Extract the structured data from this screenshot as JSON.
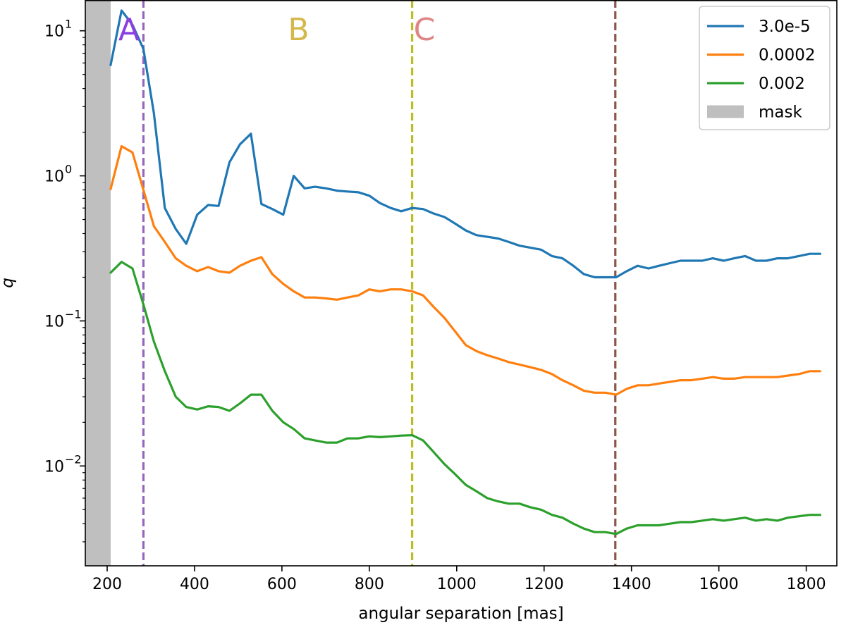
{
  "chart_data": {
    "type": "line",
    "xlabel": "angular separation [mas]",
    "ylabel": "q",
    "xlim": [
      150,
      1870
    ],
    "ylim": [
      0.00205,
      16.3
    ],
    "yscale": "log",
    "grid": false,
    "legend_position": "top-right",
    "xticks": [
      200,
      400,
      600,
      800,
      1000,
      1200,
      1400,
      1600,
      1800
    ],
    "xtick_labels": [
      "200",
      "400",
      "600",
      "800",
      "1000",
      "1200",
      "1400",
      "1600",
      "1800"
    ],
    "yticks": [
      {
        "value": 10,
        "base": "10",
        "exp": "1"
      },
      {
        "value": 1,
        "base": "10",
        "exp": "0"
      },
      {
        "value": 0.1,
        "base": "10",
        "exp": "−1"
      },
      {
        "value": 0.01,
        "base": "10",
        "exp": "−2"
      }
    ],
    "mask": {
      "name": "mask",
      "x_range": [
        150,
        208
      ],
      "color": "#bfbfbf"
    },
    "vlines": [
      {
        "x": 283,
        "label": "A",
        "line_color": "#9467bd",
        "label_color": "#8a3fe0",
        "label_x": 250
      },
      {
        "x": 898,
        "label": "B",
        "line_color": "#bcbd22",
        "label_color": "#d4b84c",
        "label_x": 638
      },
      {
        "x": 1363,
        "label": "C",
        "line_color": "#8c564b",
        "label_color": "#e08585",
        "label_x": 926
      }
    ],
    "series": [
      {
        "name": "3.0e-5",
        "color": "#1f77b4",
        "x": [
          208,
          233,
          258,
          283,
          307,
          332,
          357,
          381,
          406,
          431,
          455,
          480,
          504,
          529,
          553,
          578,
          603,
          627,
          652,
          676,
          701,
          726,
          750,
          775,
          800,
          824,
          849,
          873,
          898,
          923,
          947,
          972,
          996,
          1021,
          1045,
          1070,
          1095,
          1119,
          1144,
          1168,
          1193,
          1218,
          1242,
          1267,
          1291,
          1316,
          1340,
          1365,
          1389,
          1414,
          1439,
          1463,
          1488,
          1512,
          1537,
          1562,
          1586,
          1611,
          1635,
          1660,
          1685,
          1709,
          1734,
          1758,
          1783,
          1808,
          1832
        ],
        "y": [
          5.8,
          13.8,
          11.0,
          7.5,
          2.7,
          0.6,
          0.43,
          0.34,
          0.54,
          0.63,
          0.62,
          1.24,
          1.65,
          1.95,
          0.64,
          0.59,
          0.54,
          1.0,
          0.82,
          0.84,
          0.82,
          0.79,
          0.78,
          0.77,
          0.73,
          0.65,
          0.6,
          0.57,
          0.6,
          0.59,
          0.55,
          0.52,
          0.47,
          0.42,
          0.39,
          0.38,
          0.37,
          0.35,
          0.33,
          0.32,
          0.31,
          0.28,
          0.27,
          0.24,
          0.21,
          0.2,
          0.2,
          0.2,
          0.22,
          0.24,
          0.23,
          0.24,
          0.25,
          0.26,
          0.26,
          0.26,
          0.27,
          0.26,
          0.27,
          0.28,
          0.26,
          0.26,
          0.27,
          0.27,
          0.28,
          0.29,
          0.29
        ]
      },
      {
        "name": "0.0002",
        "color": "#ff7f0e",
        "x": [
          208,
          233,
          258,
          283,
          307,
          332,
          357,
          381,
          406,
          431,
          455,
          480,
          504,
          529,
          553,
          578,
          603,
          627,
          652,
          676,
          701,
          726,
          750,
          775,
          800,
          824,
          849,
          873,
          898,
          923,
          947,
          972,
          996,
          1021,
          1045,
          1070,
          1095,
          1119,
          1144,
          1168,
          1193,
          1218,
          1242,
          1267,
          1291,
          1316,
          1340,
          1365,
          1389,
          1414,
          1439,
          1463,
          1488,
          1512,
          1537,
          1562,
          1586,
          1611,
          1635,
          1660,
          1685,
          1709,
          1734,
          1758,
          1783,
          1808,
          1832
        ],
        "y": [
          0.81,
          1.6,
          1.45,
          0.8,
          0.45,
          0.35,
          0.27,
          0.24,
          0.22,
          0.235,
          0.22,
          0.215,
          0.24,
          0.26,
          0.275,
          0.21,
          0.18,
          0.16,
          0.145,
          0.145,
          0.143,
          0.14,
          0.145,
          0.15,
          0.165,
          0.16,
          0.165,
          0.165,
          0.16,
          0.15,
          0.125,
          0.105,
          0.085,
          0.068,
          0.062,
          0.058,
          0.055,
          0.052,
          0.05,
          0.048,
          0.046,
          0.043,
          0.039,
          0.036,
          0.033,
          0.032,
          0.032,
          0.031,
          0.034,
          0.036,
          0.036,
          0.037,
          0.038,
          0.039,
          0.039,
          0.04,
          0.041,
          0.04,
          0.04,
          0.041,
          0.041,
          0.041,
          0.041,
          0.042,
          0.043,
          0.045,
          0.045
        ]
      },
      {
        "name": "0.002",
        "color": "#2ca02c",
        "x": [
          208,
          233,
          258,
          283,
          307,
          332,
          357,
          381,
          406,
          431,
          455,
          480,
          504,
          529,
          553,
          578,
          603,
          627,
          652,
          676,
          701,
          726,
          750,
          775,
          800,
          824,
          849,
          873,
          898,
          923,
          947,
          972,
          996,
          1021,
          1045,
          1070,
          1095,
          1119,
          1144,
          1168,
          1193,
          1218,
          1242,
          1267,
          1291,
          1316,
          1340,
          1365,
          1389,
          1414,
          1439,
          1463,
          1488,
          1512,
          1537,
          1562,
          1586,
          1611,
          1635,
          1660,
          1685,
          1709,
          1734,
          1758,
          1783,
          1808,
          1832
        ],
        "y": [
          0.215,
          0.255,
          0.23,
          0.13,
          0.072,
          0.045,
          0.03,
          0.0255,
          0.0245,
          0.0258,
          0.0255,
          0.024,
          0.027,
          0.031,
          0.031,
          0.024,
          0.02,
          0.018,
          0.0155,
          0.015,
          0.0145,
          0.0145,
          0.0155,
          0.0155,
          0.016,
          0.0158,
          0.016,
          0.0162,
          0.0163,
          0.015,
          0.0125,
          0.0103,
          0.0088,
          0.0074,
          0.0067,
          0.006,
          0.0057,
          0.0055,
          0.0055,
          0.0052,
          0.005,
          0.0046,
          0.0044,
          0.004,
          0.0037,
          0.0035,
          0.0035,
          0.0034,
          0.0037,
          0.0039,
          0.0039,
          0.0039,
          0.004,
          0.0041,
          0.0041,
          0.0042,
          0.0043,
          0.0042,
          0.0043,
          0.0044,
          0.0042,
          0.0043,
          0.0042,
          0.0044,
          0.0045,
          0.0046,
          0.0046
        ]
      }
    ]
  }
}
